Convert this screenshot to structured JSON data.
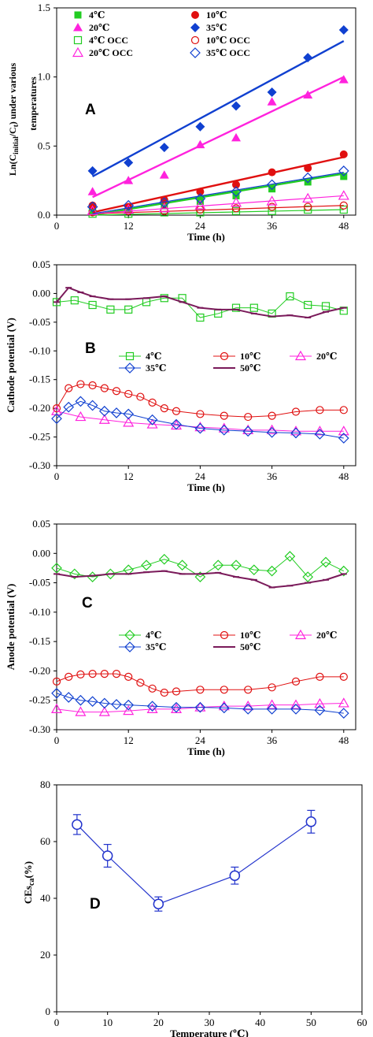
{
  "chart_data": [
    {
      "id": "A",
      "type": "scatter",
      "panel_label": "A",
      "xlabel": "Time (h)",
      "ylabel_line1": "Ln(C",
      "ylabel_sub": "initial",
      "ylabel_line1_tail": "/C",
      "ylabel_sub2": "t",
      "ylabel_line1_end": ") under various",
      "ylabel_line2": "temperatures",
      "xlim": [
        0,
        50
      ],
      "ylim": [
        0,
        1.5
      ],
      "x_ticks": [
        "0",
        "12",
        "24",
        "36",
        "48"
      ],
      "x_tick_values": [
        0,
        12,
        24,
        36,
        48
      ],
      "y_ticks": [
        "0.0",
        "0.5",
        "1.0",
        "1.5"
      ],
      "y_tick_values": [
        0,
        0.5,
        1.0,
        1.5
      ],
      "legend_position": "top-left",
      "series": [
        {
          "name": "4℃",
          "marker": "square-filled",
          "color": "#22cc22",
          "x": [
            6,
            12,
            18,
            24,
            30,
            36,
            42,
            48
          ],
          "y": [
            0.03,
            0.04,
            0.07,
            0.1,
            0.14,
            0.19,
            0.24,
            0.28
          ],
          "fit": [
            0.0,
            0.3
          ]
        },
        {
          "name": "10℃",
          "marker": "circle-filled",
          "color": "#e01010",
          "x": [
            6,
            12,
            18,
            24,
            30,
            36,
            42,
            48
          ],
          "y": [
            0.07,
            0.06,
            0.11,
            0.17,
            0.22,
            0.31,
            0.34,
            0.44
          ],
          "fit": [
            0.02,
            0.42
          ]
        },
        {
          "name": "20℃",
          "marker": "triangle-filled",
          "color": "#ff22dd",
          "x": [
            6,
            12,
            18,
            24,
            30,
            36,
            42,
            48
          ],
          "y": [
            0.17,
            0.25,
            0.29,
            0.51,
            0.56,
            0.82,
            0.87,
            0.98
          ],
          "fit": [
            0.13,
            1.0
          ]
        },
        {
          "name": "35℃",
          "marker": "diamond-filled",
          "color": "#1040d0",
          "x": [
            6,
            12,
            18,
            24,
            30,
            36,
            42,
            48
          ],
          "y": [
            0.32,
            0.38,
            0.49,
            0.64,
            0.79,
            0.89,
            1.14,
            1.34
          ],
          "fit": [
            0.28,
            1.26
          ]
        },
        {
          "name": "4℃ OCC",
          "marker": "square-open",
          "color": "#22cc22",
          "x": [
            6,
            12,
            18,
            24,
            30,
            36,
            42,
            48
          ],
          "y": [
            0.01,
            0.01,
            0.02,
            0.02,
            0.03,
            0.03,
            0.04,
            0.04
          ],
          "fit": [
            0.0,
            0.04
          ]
        },
        {
          "name": "10℃ OCC",
          "marker": "circle-open",
          "color": "#e01010",
          "x": [
            6,
            12,
            18,
            24,
            30,
            36,
            42,
            48
          ],
          "y": [
            0.02,
            0.03,
            0.03,
            0.04,
            0.05,
            0.06,
            0.06,
            0.07
          ],
          "fit": [
            0.01,
            0.07
          ]
        },
        {
          "name": "20℃ OCC",
          "marker": "triangle-open",
          "color": "#ff22dd",
          "x": [
            6,
            12,
            18,
            24,
            30,
            36,
            42,
            48
          ],
          "y": [
            0.03,
            0.04,
            0.05,
            0.07,
            0.09,
            0.1,
            0.12,
            0.14
          ],
          "fit": [
            0.01,
            0.14
          ]
        },
        {
          "name": "35℃ OCC",
          "marker": "diamond-open",
          "color": "#1040d0",
          "x": [
            6,
            12,
            18,
            24,
            30,
            36,
            42,
            48
          ],
          "y": [
            0.06,
            0.07,
            0.09,
            0.12,
            0.17,
            0.22,
            0.27,
            0.32
          ],
          "fit": [
            0.01,
            0.31
          ]
        }
      ]
    },
    {
      "id": "B",
      "type": "line",
      "panel_label": "B",
      "xlabel": "Time (h)",
      "ylabel": "Cathode potential (V)",
      "xlim": [
        0,
        50
      ],
      "ylim": [
        -0.3,
        0.05
      ],
      "x_ticks": [
        "0",
        "12",
        "24",
        "36",
        "48"
      ],
      "x_tick_values": [
        0,
        12,
        24,
        36,
        48
      ],
      "y_ticks": [
        "0.05",
        "0.00",
        "-0.05",
        "-0.10",
        "-0.15",
        "-0.20",
        "-0.25",
        "-0.30"
      ],
      "y_tick_values": [
        0.05,
        0.0,
        -0.05,
        -0.1,
        -0.15,
        -0.2,
        -0.25,
        -0.3
      ],
      "legend_position": "center",
      "series": [
        {
          "name": "4℃",
          "marker": "square-open",
          "color": "#22cc22",
          "x": [
            0,
            3,
            6,
            9,
            12,
            15,
            18,
            21,
            24,
            27,
            30,
            33,
            36,
            39,
            42,
            45,
            48
          ],
          "y": [
            -0.015,
            -0.012,
            -0.02,
            -0.028,
            -0.028,
            -0.015,
            -0.008,
            -0.008,
            -0.042,
            -0.035,
            -0.025,
            -0.025,
            -0.035,
            -0.005,
            -0.02,
            -0.022,
            -0.03
          ]
        },
        {
          "name": "10℃",
          "marker": "circle-open",
          "color": "#e01010",
          "x": [
            0,
            2,
            4,
            6,
            8,
            10,
            12,
            14,
            16,
            18,
            20,
            24,
            28,
            32,
            36,
            40,
            44,
            48
          ],
          "y": [
            -0.2,
            -0.165,
            -0.158,
            -0.16,
            -0.165,
            -0.17,
            -0.175,
            -0.18,
            -0.19,
            -0.2,
            -0.205,
            -0.21,
            -0.213,
            -0.215,
            -0.213,
            -0.206,
            -0.203,
            -0.203
          ]
        },
        {
          "name": "20℃",
          "marker": "triangle-open",
          "color": "#ff22dd",
          "x": [
            0,
            4,
            8,
            12,
            16,
            20,
            24,
            28,
            32,
            36,
            40,
            44,
            48
          ],
          "y": [
            -0.205,
            -0.215,
            -0.22,
            -0.225,
            -0.228,
            -0.23,
            -0.233,
            -0.235,
            -0.238,
            -0.238,
            -0.24,
            -0.24,
            -0.24
          ]
        },
        {
          "name": "35℃",
          "marker": "diamond-open",
          "color": "#1040d0",
          "x": [
            0,
            2,
            4,
            6,
            8,
            10,
            12,
            16,
            20,
            24,
            28,
            32,
            36,
            40,
            44,
            48
          ],
          "y": [
            -0.218,
            -0.198,
            -0.188,
            -0.195,
            -0.205,
            -0.208,
            -0.21,
            -0.22,
            -0.228,
            -0.235,
            -0.238,
            -0.24,
            -0.242,
            -0.243,
            -0.245,
            -0.252
          ]
        },
        {
          "name": "50℃",
          "marker": "dash",
          "color": "#7a1a5a",
          "x": [
            0,
            2,
            4,
            6,
            9,
            12,
            15,
            18,
            21,
            24,
            27,
            30,
            33,
            36,
            39,
            42,
            45,
            48
          ],
          "y": [
            -0.015,
            0.01,
            0.002,
            -0.005,
            -0.01,
            -0.01,
            -0.008,
            -0.005,
            -0.015,
            -0.025,
            -0.028,
            -0.028,
            -0.035,
            -0.04,
            -0.038,
            -0.042,
            -0.032,
            -0.025
          ]
        }
      ]
    },
    {
      "id": "C",
      "type": "line",
      "panel_label": "C",
      "xlabel": "Time (h)",
      "ylabel": "Anode potential (V)",
      "xlim": [
        0,
        50
      ],
      "ylim": [
        -0.3,
        0.05
      ],
      "x_ticks": [
        "0",
        "12",
        "24",
        "36",
        "48"
      ],
      "x_tick_values": [
        0,
        12,
        24,
        36,
        48
      ],
      "y_ticks": [
        "0.05",
        "0.00",
        "-0.05",
        "-0.10",
        "-0.15",
        "-0.20",
        "-0.25",
        "-0.30"
      ],
      "y_tick_values": [
        0.05,
        0.0,
        -0.05,
        -0.1,
        -0.15,
        -0.2,
        -0.25,
        -0.3
      ],
      "legend_position": "center",
      "series": [
        {
          "name": "4℃",
          "marker": "diamond-open",
          "color": "#22cc22",
          "x": [
            0,
            3,
            6,
            9,
            12,
            15,
            18,
            21,
            24,
            27,
            30,
            33,
            36,
            39,
            42,
            45,
            48
          ],
          "y": [
            -0.025,
            -0.035,
            -0.04,
            -0.035,
            -0.028,
            -0.02,
            -0.01,
            -0.02,
            -0.04,
            -0.02,
            -0.02,
            -0.028,
            -0.03,
            -0.005,
            -0.04,
            -0.015,
            -0.03
          ]
        },
        {
          "name": "10℃",
          "marker": "circle-open",
          "color": "#e01010",
          "x": [
            0,
            2,
            4,
            6,
            8,
            10,
            12,
            14,
            16,
            18,
            20,
            24,
            28,
            32,
            36,
            40,
            44,
            48
          ],
          "y": [
            -0.218,
            -0.21,
            -0.206,
            -0.205,
            -0.205,
            -0.205,
            -0.21,
            -0.22,
            -0.23,
            -0.237,
            -0.235,
            -0.232,
            -0.232,
            -0.232,
            -0.228,
            -0.218,
            -0.21,
            -0.21
          ]
        },
        {
          "name": "20℃",
          "marker": "triangle-open",
          "color": "#ff22dd",
          "x": [
            0,
            4,
            8,
            12,
            16,
            20,
            24,
            28,
            32,
            36,
            40,
            44,
            48
          ],
          "y": [
            -0.265,
            -0.27,
            -0.27,
            -0.268,
            -0.265,
            -0.265,
            -0.262,
            -0.26,
            -0.26,
            -0.258,
            -0.258,
            -0.256,
            -0.255
          ]
        },
        {
          "name": "35℃",
          "marker": "diamond-open",
          "color": "#1040d0",
          "x": [
            0,
            2,
            4,
            6,
            8,
            10,
            12,
            16,
            20,
            24,
            28,
            32,
            36,
            40,
            44,
            48
          ],
          "y": [
            -0.238,
            -0.245,
            -0.25,
            -0.252,
            -0.255,
            -0.257,
            -0.258,
            -0.26,
            -0.262,
            -0.262,
            -0.263,
            -0.265,
            -0.265,
            -0.265,
            -0.267,
            -0.272
          ]
        },
        {
          "name": "50℃",
          "marker": "dash",
          "color": "#7a1a5a",
          "x": [
            0,
            3,
            6,
            9,
            12,
            15,
            18,
            21,
            24,
            27,
            30,
            33,
            36,
            39,
            42,
            45,
            48
          ],
          "y": [
            -0.035,
            -0.04,
            -0.038,
            -0.035,
            -0.035,
            -0.032,
            -0.03,
            -0.035,
            -0.035,
            -0.033,
            -0.04,
            -0.045,
            -0.058,
            -0.055,
            -0.05,
            -0.045,
            -0.035
          ]
        }
      ]
    },
    {
      "id": "D",
      "type": "line",
      "panel_label": "D",
      "xlabel": "Temperature (℃)",
      "ylabel_main": "CEs",
      "ylabel_sub": "ca",
      "ylabel_tail": "(%)",
      "xlim": [
        0,
        60
      ],
      "ylim": [
        0,
        80
      ],
      "x_ticks": [
        "0",
        "10",
        "20",
        "30",
        "40",
        "50",
        "60"
      ],
      "x_tick_values": [
        0,
        10,
        20,
        30,
        40,
        50,
        60
      ],
      "y_ticks": [
        "0",
        "20",
        "40",
        "60",
        "80"
      ],
      "y_tick_values": [
        0,
        20,
        40,
        60,
        80
      ],
      "series": [
        {
          "marker": "circle-open",
          "color": "#2233cc",
          "x": [
            4,
            10,
            20,
            35,
            50
          ],
          "y": [
            66,
            55,
            38,
            48,
            67
          ],
          "err": [
            3.5,
            4,
            2.5,
            3,
            4
          ]
        }
      ]
    }
  ]
}
